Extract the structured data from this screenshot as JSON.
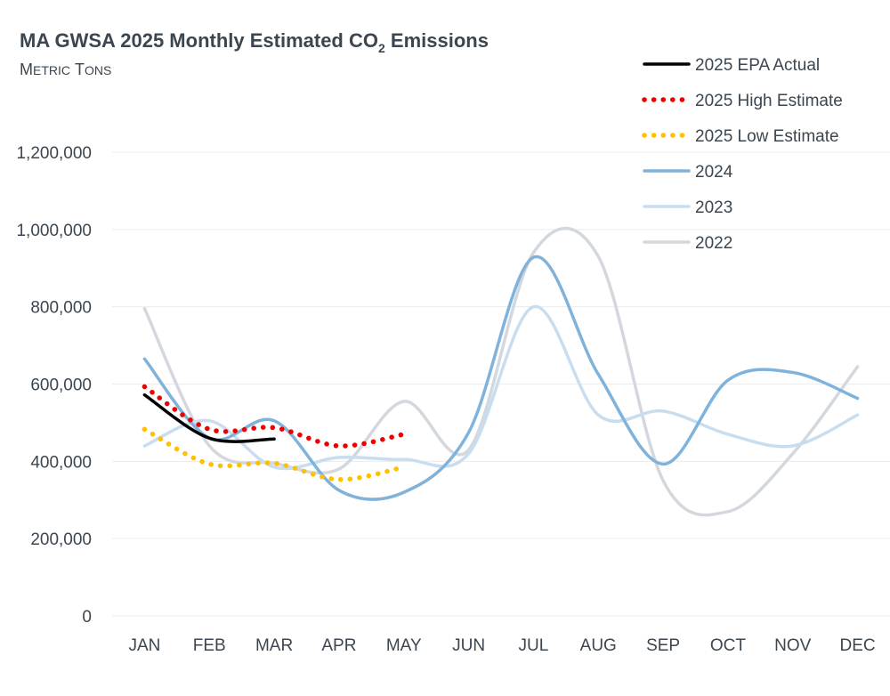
{
  "chart_data": {
    "type": "line",
    "title_main": "MA GWSA 2025 Monthly Estimated  CO",
    "title_sub": "2",
    "title_end": " Emissions",
    "subtitle_first": "M",
    "subtitle_first_rest": "ETRIC",
    "subtitle_second": "T",
    "subtitle_second_rest": "ONS",
    "xlabel": "",
    "ylabel": "",
    "ylim": [
      0,
      1200000
    ],
    "yticks": [
      0,
      200000,
      400000,
      600000,
      800000,
      1000000,
      1200000
    ],
    "ytick_labels": [
      "0",
      "200,000",
      "400,000",
      "600,000",
      "800,000",
      "1,000,000",
      "1,200,000"
    ],
    "categories": [
      "JAN",
      "FEB",
      "MAR",
      "APR",
      "MAY",
      "JUN",
      "JUL",
      "AUG",
      "SEP",
      "OCT",
      "NOV",
      "DEC"
    ],
    "legend_position": "top-right",
    "grid": true,
    "series": [
      {
        "name": "2022",
        "color": "#d3d7de",
        "dash": "solid",
        "values": [
          795000,
          440000,
          395000,
          380000,
          555000,
          430000,
          940000,
          930000,
          350000,
          270000,
          420000,
          645000
        ]
      },
      {
        "name": "2023",
        "color": "#c8ddef",
        "dash": "solid",
        "values": [
          440000,
          505000,
          385000,
          410000,
          405000,
          420000,
          800000,
          520000,
          530000,
          470000,
          440000,
          520000
        ]
      },
      {
        "name": "2024",
        "color": "#7fb3dc",
        "dash": "solid",
        "values": [
          665000,
          460000,
          505000,
          325000,
          320000,
          475000,
          928000,
          625000,
          393000,
          610000,
          630000,
          563000
        ]
      },
      {
        "name": "2025 Low Estimate",
        "color": "#ffc000",
        "dash": "dot",
        "values": [
          483000,
          393000,
          395000,
          353000,
          385000,
          null,
          null,
          null,
          null,
          null,
          null,
          null
        ]
      },
      {
        "name": "2025 High Estimate",
        "color": "#ee0000",
        "dash": "dot",
        "values": [
          593000,
          483000,
          487000,
          440000,
          470000,
          null,
          null,
          null,
          null,
          null,
          null,
          null
        ]
      },
      {
        "name": "2025 EPA Actual",
        "color": "#000000",
        "dash": "solid",
        "values": [
          572000,
          460000,
          458000,
          null,
          null,
          null,
          null,
          null,
          null,
          null,
          null,
          null
        ]
      }
    ],
    "legend_order": [
      "2025 EPA Actual",
      "2025 High Estimate",
      "2025 Low Estimate",
      "2024",
      "2023",
      "2022"
    ]
  }
}
